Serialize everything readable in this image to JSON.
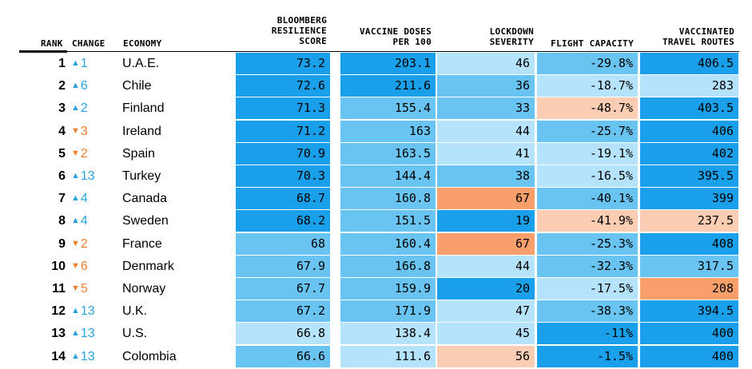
{
  "chart_data": {
    "type": "table",
    "columns": [
      "RANK",
      "CHANGE",
      "ECONOMY",
      "BLOOMBERG\nRESILIENCE\nSCORE",
      "VACCINE DOSES\nPER 100",
      "LOCKDOWN\nSEVERITY",
      "FLIGHT CAPACITY",
      "VACCINATED\nTRAVEL ROUTES"
    ],
    "rows": [
      {
        "rank": "1",
        "change": "1",
        "dir": "up",
        "economy": "U.A.E.",
        "score": "73.2",
        "doses": "203.1",
        "lockdown": "46",
        "flight": "-29.8%",
        "routes": "406.5"
      },
      {
        "rank": "2",
        "change": "6",
        "dir": "up",
        "economy": "Chile",
        "score": "72.6",
        "doses": "211.6",
        "lockdown": "36",
        "flight": "-18.7%",
        "routes": "283"
      },
      {
        "rank": "3",
        "change": "2",
        "dir": "up",
        "economy": "Finland",
        "score": "71.3",
        "doses": "155.4",
        "lockdown": "33",
        "flight": "-48.7%",
        "routes": "403.5"
      },
      {
        "rank": "4",
        "change": "3",
        "dir": "down",
        "economy": "Ireland",
        "score": "71.2",
        "doses": "163",
        "lockdown": "44",
        "flight": "-25.7%",
        "routes": "406"
      },
      {
        "rank": "5",
        "change": "2",
        "dir": "down",
        "economy": "Spain",
        "score": "70.9",
        "doses": "163.5",
        "lockdown": "41",
        "flight": "-19.1%",
        "routes": "402"
      },
      {
        "rank": "6",
        "change": "13",
        "dir": "up",
        "economy": "Turkey",
        "score": "70.3",
        "doses": "144.4",
        "lockdown": "38",
        "flight": "-16.5%",
        "routes": "395.5"
      },
      {
        "rank": "7",
        "change": "4",
        "dir": "up",
        "economy": "Canada",
        "score": "68.7",
        "doses": "160.8",
        "lockdown": "67",
        "flight": "-40.1%",
        "routes": "399"
      },
      {
        "rank": "8",
        "change": "4",
        "dir": "up",
        "economy": "Sweden",
        "score": "68.2",
        "doses": "151.5",
        "lockdown": "19",
        "flight": "-41.9%",
        "routes": "237.5"
      },
      {
        "rank": "9",
        "change": "2",
        "dir": "down",
        "economy": "France",
        "score": "68",
        "doses": "160.4",
        "lockdown": "67",
        "flight": "-25.3%",
        "routes": "408"
      },
      {
        "rank": "10",
        "change": "6",
        "dir": "down",
        "economy": "Denmark",
        "score": "67.9",
        "doses": "166.8",
        "lockdown": "44",
        "flight": "-32.3%",
        "routes": "317.5"
      },
      {
        "rank": "11",
        "change": "5",
        "dir": "down",
        "economy": "Norway",
        "score": "67.7",
        "doses": "159.9",
        "lockdown": "20",
        "flight": "-17.5%",
        "routes": "208"
      },
      {
        "rank": "12",
        "change": "13",
        "dir": "up",
        "economy": "U.K.",
        "score": "67.2",
        "doses": "171.9",
        "lockdown": "47",
        "flight": "-38.3%",
        "routes": "394.5"
      },
      {
        "rank": "13",
        "change": "13",
        "dir": "up",
        "economy": "U.S.",
        "score": "66.8",
        "doses": "138.4",
        "lockdown": "45",
        "flight": "-11%",
        "routes": "400"
      },
      {
        "rank": "14",
        "change": "13",
        "dir": "up",
        "economy": "Colombia",
        "score": "66.6",
        "doses": "111.6",
        "lockdown": "56",
        "flight": "-1.5%",
        "routes": "400"
      }
    ],
    "cell_colors": {
      "score": [
        "dark",
        "dark",
        "dark",
        "dark",
        "dark",
        "dark",
        "dark",
        "dark",
        "mid",
        "mid",
        "mid",
        "mid",
        "light",
        "mid"
      ],
      "doses": [
        "dark",
        "dark",
        "mid",
        "mid",
        "mid",
        "mid",
        "mid",
        "mid",
        "mid",
        "mid",
        "mid",
        "mid",
        "light",
        "light"
      ],
      "lockdown": [
        "light",
        "mid",
        "mid",
        "light",
        "light",
        "mid",
        "orange",
        "dark",
        "orange",
        "light",
        "dark",
        "light",
        "light",
        "peach"
      ],
      "flight": [
        "mid",
        "light",
        "peach",
        "mid",
        "light",
        "light",
        "mid",
        "peach",
        "mid",
        "mid",
        "light",
        "mid",
        "dark",
        "dark"
      ],
      "routes": [
        "dark",
        "light",
        "dark",
        "dark",
        "dark",
        "dark",
        "dark",
        "peach",
        "dark",
        "mid",
        "orange",
        "dark",
        "dark",
        "dark"
      ]
    },
    "palette": {
      "dark": "#1aa0ea",
      "mid": "#6ac4f2",
      "light": "#b5e3fb",
      "peach": "#fbcdb3",
      "orange": "#f99f6c",
      "up": "#29a3e0",
      "down": "#f07f2d",
      "rule": "#000000"
    }
  }
}
